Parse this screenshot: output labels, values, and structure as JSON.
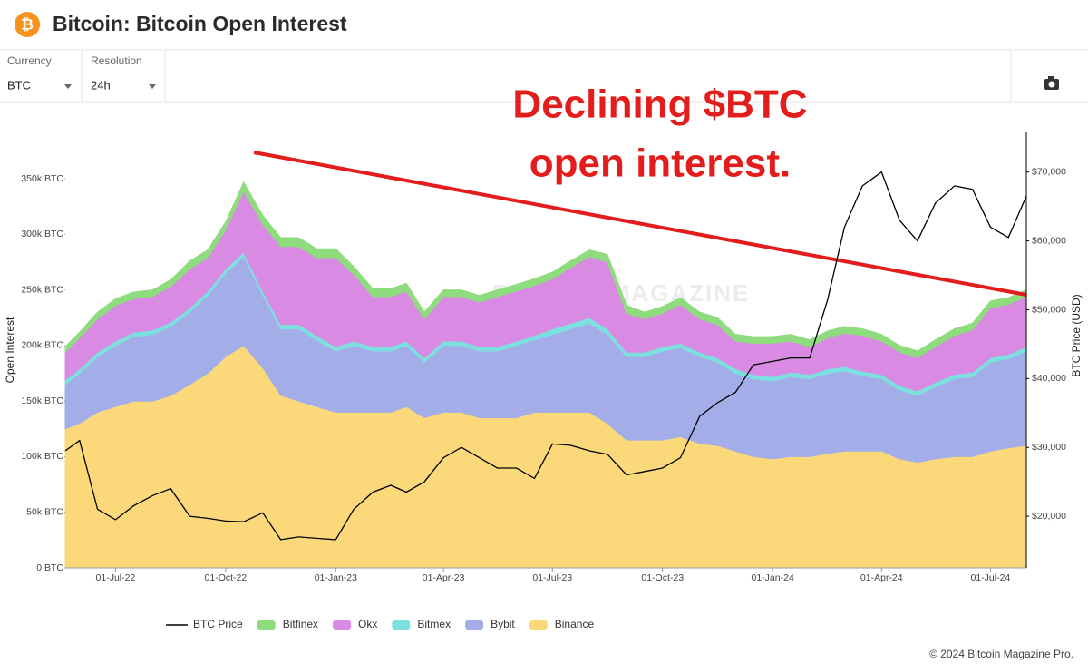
{
  "header": {
    "icon": "₿",
    "title": "Bitcoin: Bitcoin Open Interest"
  },
  "controls": [
    {
      "label": "Currency",
      "value": "BTC"
    },
    {
      "label": "Resolution",
      "value": "24h"
    }
  ],
  "footer": "© 2024 Bitcoin Magazine Pro.",
  "watermark": [
    "BITCOIN MAGAZINE",
    "PRO"
  ],
  "chart_data": {
    "type": "stacked-area",
    "annotation": [
      "Declining $BTC",
      "open interest."
    ],
    "ylabel": "Open Interest",
    "y2label": "BTC Price (USD)",
    "xlim": [
      "20-May-22",
      "31-Jul-24"
    ],
    "xticks": [
      "01-Jul-22",
      "01-Oct-22",
      "01-Jan-23",
      "01-Apr-23",
      "01-Jul-23",
      "01-Oct-23",
      "01-Jan-24",
      "01-Apr-24",
      "01-Jul-24"
    ],
    "ylim": [
      0,
      390000
    ],
    "yticks": [
      {
        "value": 0,
        "label": "0 BTC"
      },
      {
        "value": 50000,
        "label": "50k BTC"
      },
      {
        "value": 100000,
        "label": "100k BTC"
      },
      {
        "value": 150000,
        "label": "150k BTC"
      },
      {
        "value": 200000,
        "label": "200k BTC"
      },
      {
        "value": 250000,
        "label": "250k BTC"
      },
      {
        "value": 300000,
        "label": "300k BTC"
      },
      {
        "value": 350000,
        "label": "350k BTC"
      }
    ],
    "y2lim": [
      12500,
      75500
    ],
    "y2ticks": [
      {
        "value": 20000,
        "label": "$20,000"
      },
      {
        "value": 30000,
        "label": "$30,000"
      },
      {
        "value": 40000,
        "label": "$40,000"
      },
      {
        "value": 50000,
        "label": "$50,000"
      },
      {
        "value": 60000,
        "label": "$60,000"
      },
      {
        "value": 70000,
        "label": "$70,000"
      }
    ],
    "x": [
      "20-May-22",
      "01-Jun-22",
      "16-Jun-22",
      "01-Jul-22",
      "16-Jul-22",
      "01-Aug-22",
      "16-Aug-22",
      "01-Sep-22",
      "16-Sep-22",
      "01-Oct-22",
      "16-Oct-22",
      "01-Nov-22",
      "16-Nov-22",
      "01-Dec-22",
      "16-Dec-22",
      "01-Jan-23",
      "16-Jan-23",
      "01-Feb-23",
      "16-Feb-23",
      "01-Mar-23",
      "16-Mar-23",
      "01-Apr-23",
      "16-Apr-23",
      "01-May-23",
      "16-May-23",
      "01-Jun-23",
      "16-Jun-23",
      "01-Jul-23",
      "16-Jul-23",
      "01-Aug-23",
      "16-Aug-23",
      "01-Sep-23",
      "16-Sep-23",
      "01-Oct-23",
      "16-Oct-23",
      "01-Nov-23",
      "16-Nov-23",
      "01-Dec-23",
      "16-Dec-23",
      "01-Jan-24",
      "16-Jan-24",
      "01-Feb-24",
      "16-Feb-24",
      "01-Mar-24",
      "16-Mar-24",
      "01-Apr-24",
      "16-Apr-24",
      "01-May-24",
      "16-May-24",
      "01-Jun-24",
      "16-Jun-24",
      "01-Jul-24",
      "16-Jul-24",
      "31-Jul-24"
    ],
    "series": [
      {
        "name": "BTC Price",
        "color": "#000000",
        "axis": "y2",
        "kind": "line",
        "values": [
          29500,
          31000,
          21000,
          19500,
          21500,
          23000,
          24000,
          20000,
          19700,
          19300,
          19200,
          20500,
          16600,
          17000,
          16800,
          16600,
          21000,
          23500,
          24500,
          23500,
          25000,
          28500,
          30000,
          28500,
          27000,
          27000,
          25500,
          30500,
          30300,
          29500,
          29000,
          26000,
          26500,
          27000,
          28500,
          34500,
          36500,
          38000,
          42000,
          42500,
          43000,
          43000,
          51500,
          62000,
          68000,
          70000,
          63000,
          60000,
          65500,
          68000,
          67500,
          62000,
          60500,
          66500
        ]
      },
      {
        "name": "Bitfinex",
        "color": "#8fdc7f",
        "kind": "area",
        "values": [
          5000,
          5000,
          6000,
          6000,
          6000,
          6000,
          6000,
          7000,
          7000,
          7000,
          8000,
          8000,
          8000,
          8000,
          8000,
          8000,
          7000,
          7000,
          7000,
          7000,
          6000,
          6000,
          6000,
          6000,
          6000,
          6000,
          6000,
          6000,
          6000,
          6000,
          7000,
          7000,
          6000,
          6000,
          6000,
          6000,
          6000,
          6000,
          6000,
          6000,
          6000,
          6000,
          6000,
          6000,
          6000,
          6000,
          6000,
          6000,
          6000,
          6000,
          6000,
          6000,
          6000,
          6000
        ]
      },
      {
        "name": "Okx",
        "color": "#d98be3",
        "kind": "area",
        "values": [
          25000,
          28000,
          30000,
          32000,
          30000,
          30000,
          32000,
          35000,
          30000,
          35000,
          55000,
          60000,
          70000,
          70000,
          70000,
          80000,
          60000,
          45000,
          45000,
          45000,
          35000,
          40000,
          40000,
          40000,
          45000,
          45000,
          45000,
          45000,
          50000,
          55000,
          60000,
          35000,
          30000,
          30000,
          35000,
          30000,
          30000,
          25000,
          28000,
          30000,
          28000,
          25000,
          28000,
          30000,
          32000,
          30000,
          30000,
          30000,
          32000,
          35000,
          38000,
          45000,
          45000,
          45000
        ]
      },
      {
        "name": "Bitmex",
        "color": "#7de0e0",
        "kind": "area",
        "values": [
          4000,
          4000,
          4000,
          4000,
          4000,
          4000,
          4000,
          4000,
          4000,
          4000,
          4000,
          4000,
          4000,
          4000,
          4000,
          4000,
          4000,
          4000,
          4000,
          4000,
          4000,
          4000,
          4000,
          4000,
          4000,
          4000,
          4000,
          5000,
          5000,
          5000,
          5000,
          4000,
          4000,
          4000,
          4000,
          4000,
          4000,
          4000,
          4000,
          4000,
          4000,
          4000,
          4000,
          4000,
          4000,
          4000,
          4000,
          4000,
          4000,
          4000,
          4000,
          4000,
          4000,
          4000
        ]
      },
      {
        "name": "Bybit",
        "color": "#a3aee8",
        "kind": "area",
        "values": [
          40000,
          45000,
          50000,
          55000,
          58000,
          60000,
          62000,
          65000,
          70000,
          75000,
          80000,
          65000,
          60000,
          65000,
          60000,
          55000,
          60000,
          55000,
          55000,
          55000,
          50000,
          60000,
          60000,
          60000,
          60000,
          65000,
          65000,
          70000,
          75000,
          80000,
          80000,
          75000,
          75000,
          80000,
          80000,
          78000,
          75000,
          70000,
          70000,
          70000,
          72000,
          70000,
          72000,
          72000,
          68000,
          65000,
          62000,
          60000,
          65000,
          70000,
          72000,
          80000,
          80000,
          85000
        ]
      },
      {
        "name": "Binance",
        "color": "#fbd97b",
        "kind": "area",
        "values": [
          125000,
          130000,
          140000,
          145000,
          150000,
          150000,
          155000,
          165000,
          175000,
          190000,
          200000,
          180000,
          155000,
          150000,
          145000,
          140000,
          140000,
          140000,
          140000,
          145000,
          135000,
          140000,
          140000,
          135000,
          135000,
          135000,
          140000,
          140000,
          140000,
          140000,
          130000,
          115000,
          115000,
          115000,
          118000,
          112000,
          110000,
          105000,
          100000,
          98000,
          100000,
          100000,
          103000,
          105000,
          105000,
          105000,
          98000,
          95000,
          98000,
          100000,
          100000,
          105000,
          108000,
          110000
        ]
      }
    ]
  }
}
